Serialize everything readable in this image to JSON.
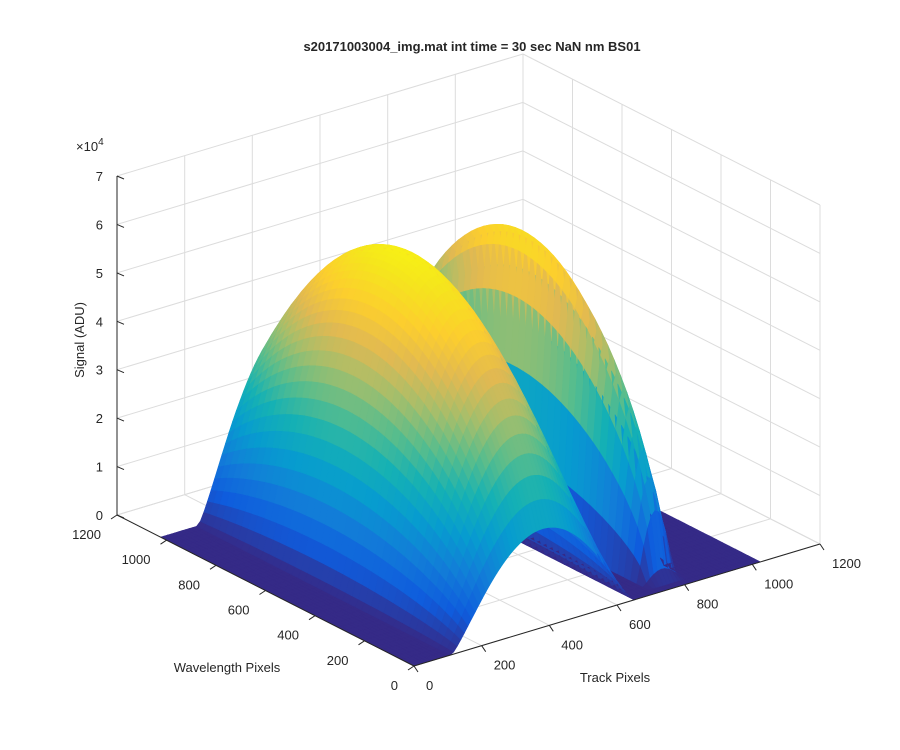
{
  "chart_data": {
    "type": "surface3d",
    "title": "s20171003004_img.mat int time = 30 sec   NaN nm BS01",
    "xlabel": "Track Pixels",
    "ylabel": "Wavelength Pixels",
    "zlabel": "Signal (ADU)",
    "xlim": [
      0,
      1200
    ],
    "ylim": [
      0,
      1200
    ],
    "zlim": [
      0,
      70000
    ],
    "x_ticks": [
      "0",
      "200",
      "400",
      "600",
      "800",
      "1000",
      "1200"
    ],
    "y_ticks": [
      "0",
      "200",
      "400",
      "600",
      "800",
      "1000",
      "1200"
    ],
    "z_ticks": [
      "0",
      "1",
      "2",
      "3",
      "4",
      "5",
      "6",
      "7"
    ],
    "z_exponent_prefix": "×10",
    "z_exponent_power": "4",
    "grid": true,
    "colormap": "parula",
    "data_extent": {
      "x": [
        0,
        1024
      ],
      "y": [
        0,
        1024
      ]
    },
    "peaks": [
      {
        "x_center": 380,
        "x_width": 270,
        "y_center": 560,
        "y_width": 610,
        "height": 63000
      },
      {
        "x_center": 770,
        "x_width": 55,
        "y_center": 610,
        "y_width": 560,
        "height": 58000
      }
    ],
    "floor_value": 0
  }
}
